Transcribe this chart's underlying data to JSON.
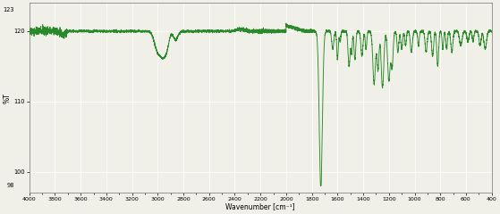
{
  "xlabel": "Wavenumber [cm⁻¹]",
  "ylabel": "%T",
  "xlim": [
    4000,
    400
  ],
  "ylim": [
    97,
    124
  ],
  "yticks": [
    100,
    110,
    120
  ],
  "ytick_labels": [
    "100",
    "110",
    "120"
  ],
  "xticks": [
    4000,
    3800,
    3600,
    3400,
    3200,
    3000,
    2800,
    2600,
    2400,
    2200,
    2000,
    1800,
    1600,
    1400,
    1200,
    1000,
    800,
    600,
    400
  ],
  "line_color": "#2a8a2a",
  "background_color": "#f0f0e8",
  "axis_color": "#888888",
  "extra_yticks": [
    98,
    123
  ]
}
